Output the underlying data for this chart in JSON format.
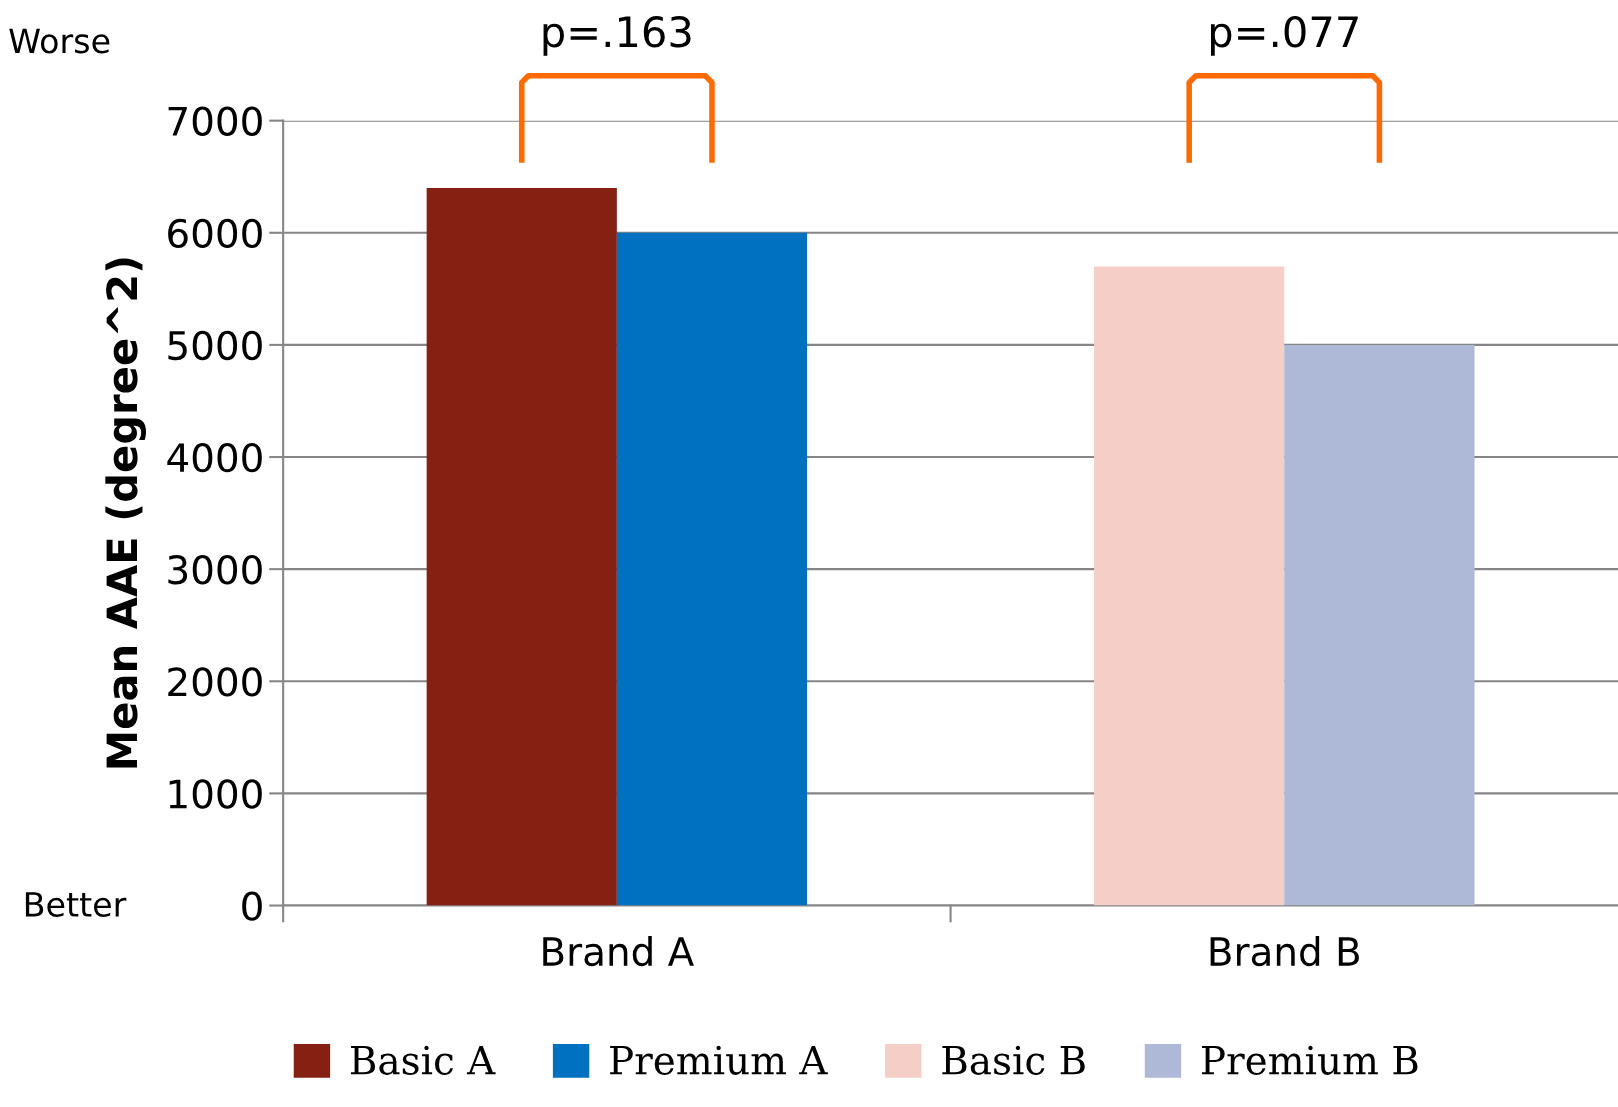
{
  "chart_data": {
    "type": "bar",
    "ylabel": "Mean AAE (degree^2)",
    "categories": [
      "Brand A",
      "Brand B"
    ],
    "series": [
      {
        "name": "Basic A",
        "color": "#852012",
        "values": [
          6400,
          null
        ]
      },
      {
        "name": "Premium A",
        "color": "#0070c0",
        "values": [
          6000,
          null
        ]
      },
      {
        "name": "Basic B",
        "color": "#f6cec8",
        "values": [
          null,
          5700
        ]
      },
      {
        "name": "Premium B",
        "color": "#adb9d6",
        "values": [
          null,
          5000
        ]
      }
    ],
    "ylim": [
      0,
      7000
    ],
    "yticks": [
      0,
      1000,
      2000,
      3000,
      4000,
      5000,
      6000,
      7000
    ],
    "grid": "y",
    "legend": "bottom",
    "annotations": [
      "p=.163",
      "p=.077",
      "Worse",
      "Better"
    ]
  }
}
